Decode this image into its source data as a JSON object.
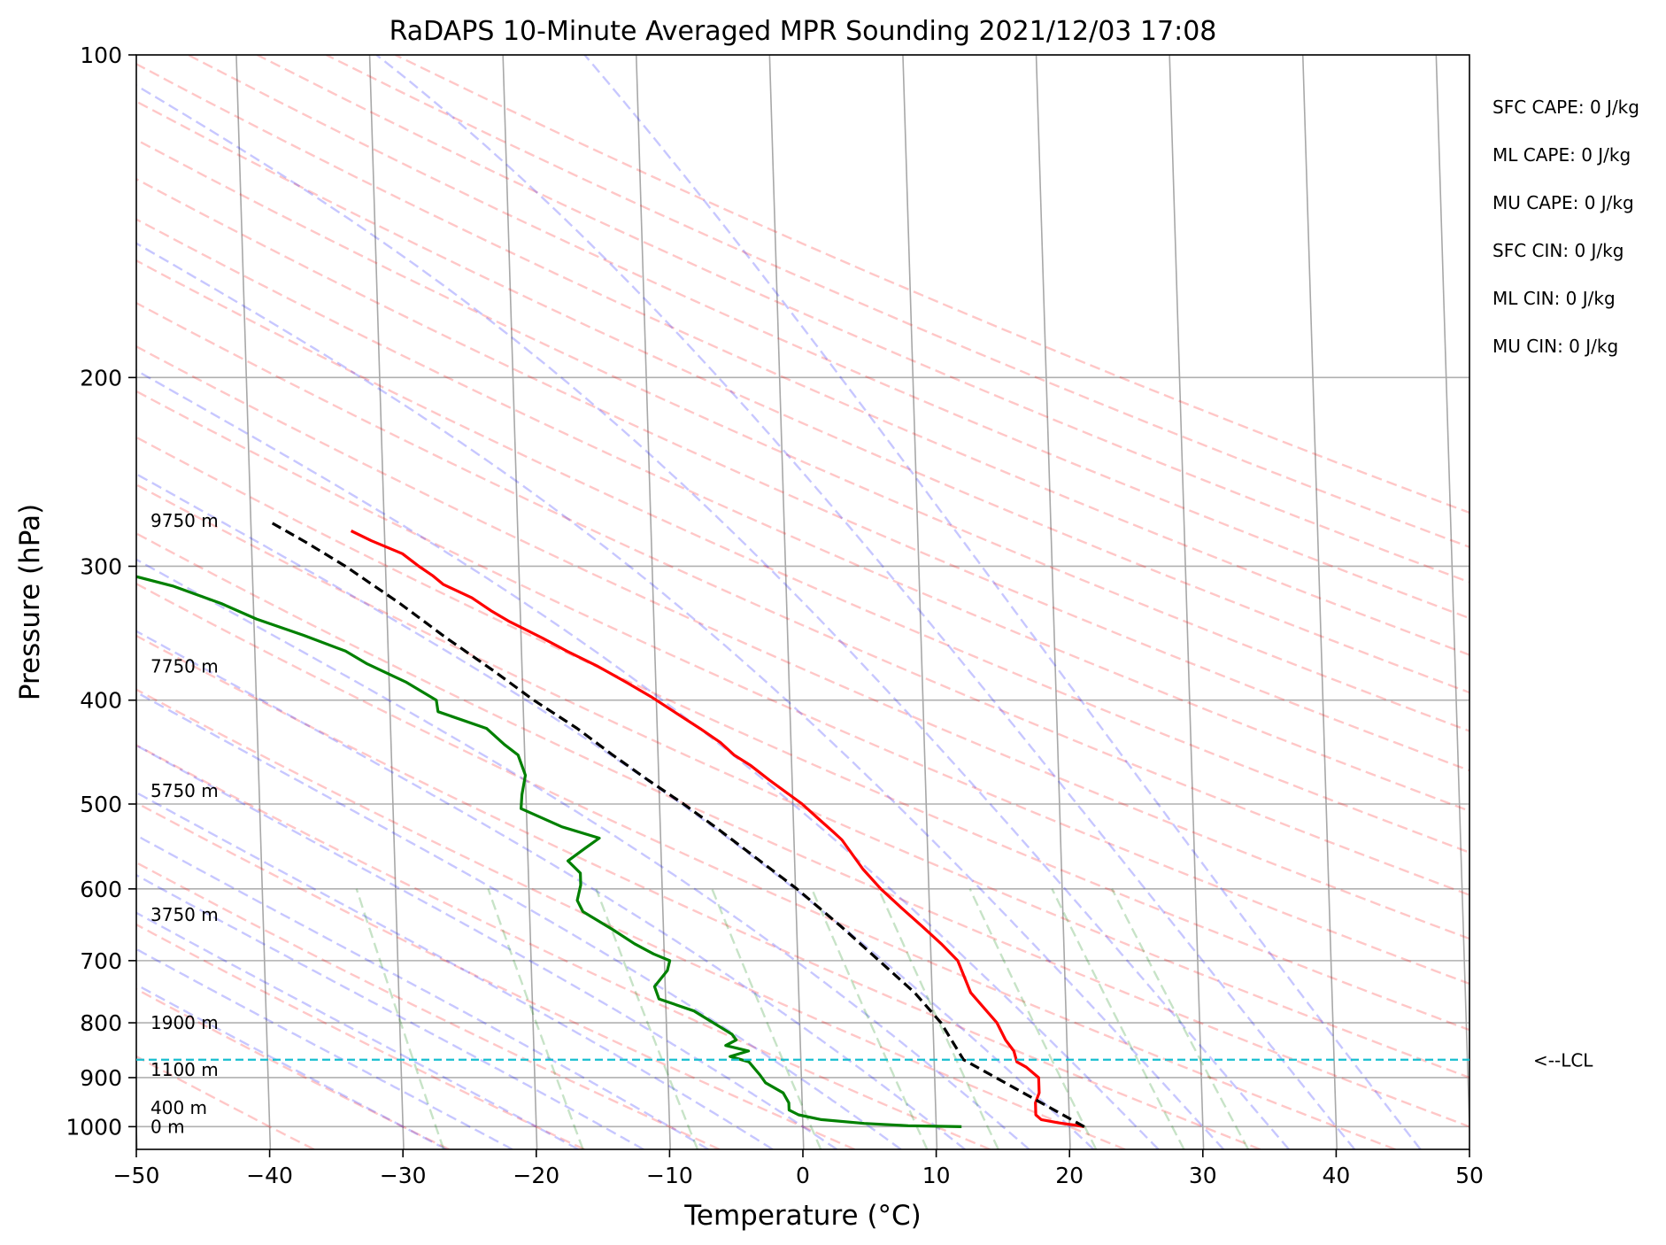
{
  "chart_data": {
    "type": "line",
    "title": "RaDAPS 10-Minute Averaged MPR Sounding 2021/12/03 17:08",
    "xlabel": "Temperature (°C)",
    "ylabel": "Pressure (hPa)",
    "xlim": [
      -50,
      50
    ],
    "ylim": [
      1050,
      100
    ],
    "y_scale": "log",
    "skew_t": true,
    "grid": true,
    "x_ticks": [
      "−50",
      "−40",
      "−30",
      "−20",
      "−10",
      "0",
      "10",
      "20",
      "30",
      "40",
      "50"
    ],
    "x_tick_values": [
      -50,
      -40,
      -30,
      -20,
      -10,
      0,
      10,
      20,
      30,
      40,
      50
    ],
    "y_ticks": [
      "100",
      "200",
      "300",
      "400",
      "500",
      "600",
      "700",
      "800",
      "900",
      "1000"
    ],
    "y_tick_values": [
      100,
      200,
      300,
      400,
      500,
      600,
      700,
      800,
      900,
      1000
    ],
    "height_labels": [
      {
        "label": "9750 m",
        "p": 272
      },
      {
        "label": "7750 m",
        "p": 372
      },
      {
        "label": "5750 m",
        "p": 486
      },
      {
        "label": "3750 m",
        "p": 634
      },
      {
        "label": "1900 m",
        "p": 800
      },
      {
        "label": "1100 m",
        "p": 885
      },
      {
        "label": "400 m",
        "p": 960
      },
      {
        "label": "0 m",
        "p": 1000
      }
    ],
    "stats": [
      "SFC CAPE: 0 J/kg",
      "ML CAPE: 0 J/kg",
      "MU CAPE: 0 J/kg",
      "SFC CIN: 0 J/kg",
      "ML CIN: 0 J/kg",
      "MU CIN: 0 J/kg"
    ],
    "lcl": {
      "label": "<--LCL",
      "p": 866,
      "color": "#17becf"
    },
    "series": [
      {
        "color": "#ff0000",
        "points": [
          [
            21.1,
            1000
          ],
          [
            20.5,
            997
          ],
          [
            19.2,
            992
          ],
          [
            17.9,
            985
          ],
          [
            17.5,
            975
          ],
          [
            17.5,
            950
          ],
          [
            17.8,
            930
          ],
          [
            17.8,
            900
          ],
          [
            16.9,
            880
          ],
          [
            16.2,
            870
          ],
          [
            16.0,
            850
          ],
          [
            15.4,
            830
          ],
          [
            14.8,
            800
          ],
          [
            12.9,
            750
          ],
          [
            12.0,
            700
          ],
          [
            10.8,
            675
          ],
          [
            9.4,
            650
          ],
          [
            7.9,
            625
          ],
          [
            6.4,
            600
          ],
          [
            5.1,
            575
          ],
          [
            3.6,
            540
          ],
          [
            2.9,
            530
          ],
          [
            1.8,
            515
          ],
          [
            0.7,
            500
          ],
          [
            -1.7,
            475
          ],
          [
            -3.1,
            460
          ],
          [
            -4.3,
            450
          ],
          [
            -5.3,
            438
          ],
          [
            -6.8,
            425
          ],
          [
            -8.7,
            410
          ],
          [
            -10.4,
            397
          ],
          [
            -12.2,
            385
          ],
          [
            -14.3,
            372
          ],
          [
            -16.6,
            360
          ],
          [
            -18.4,
            350
          ],
          [
            -20.8,
            338
          ],
          [
            -22.2,
            330
          ],
          [
            -23.6,
            321
          ],
          [
            -25.7,
            312
          ],
          [
            -26.5,
            306
          ],
          [
            -27.5,
            300
          ],
          [
            -28.7,
            292
          ],
          [
            -31.0,
            284
          ],
          [
            -32.5,
            278
          ]
        ]
      },
      {
        "color": "#008000",
        "points": [
          [
            11.9,
            1000
          ],
          [
            7.9,
            998
          ],
          [
            4.6,
            993
          ],
          [
            1.4,
            985
          ],
          [
            -0.3,
            975
          ],
          [
            -1.0,
            965
          ],
          [
            -1.0,
            950
          ],
          [
            -1.4,
            930
          ],
          [
            -2.7,
            910
          ],
          [
            -3.1,
            895
          ],
          [
            -3.9,
            870
          ],
          [
            -5.3,
            860
          ],
          [
            -3.9,
            850
          ],
          [
            -5.6,
            840
          ],
          [
            -4.8,
            830
          ],
          [
            -5.1,
            820
          ],
          [
            -7.9,
            780
          ],
          [
            -10.5,
            760
          ],
          [
            -10.8,
            740
          ],
          [
            -9.8,
            715
          ],
          [
            -9.6,
            700
          ],
          [
            -10.8,
            690
          ],
          [
            -12.2,
            675
          ],
          [
            -13.8,
            655
          ],
          [
            -16.0,
            630
          ],
          [
            -16.4,
            615
          ],
          [
            -16.1,
            595
          ],
          [
            -16.1,
            580
          ],
          [
            -17.0,
            565
          ],
          [
            -15.7,
            550
          ],
          [
            -14.6,
            538
          ],
          [
            -17.4,
            525
          ],
          [
            -20.4,
            505
          ],
          [
            -20.3,
            490
          ],
          [
            -20.0,
            470
          ],
          [
            -20.5,
            450
          ],
          [
            -21.5,
            440
          ],
          [
            -22.8,
            425
          ],
          [
            -26.4,
            410
          ],
          [
            -26.5,
            400
          ],
          [
            -28.7,
            385
          ],
          [
            -31.6,
            370
          ],
          [
            -33.2,
            360
          ],
          [
            -36.3,
            348
          ],
          [
            -39.8,
            336
          ],
          [
            -42.4,
            325
          ],
          [
            -46.0,
            313
          ],
          [
            -51.7,
            300
          ],
          [
            -62.0,
            292
          ]
        ]
      },
      {
        "color": "#000000",
        "dashed": true,
        "points": [
          [
            21.1,
            1000
          ],
          [
            12.2,
            866
          ],
          [
            10.6,
            800
          ],
          [
            8.7,
            750
          ],
          [
            6.1,
            700
          ],
          [
            3.3,
            650
          ],
          [
            0.1,
            600
          ],
          [
            -1.8,
            575
          ],
          [
            -3.8,
            550
          ],
          [
            -5.9,
            525
          ],
          [
            -8.2,
            500
          ],
          [
            -10.8,
            475
          ],
          [
            -13.4,
            450
          ],
          [
            -16.0,
            425
          ],
          [
            -19.2,
            400
          ],
          [
            -22.2,
            375
          ],
          [
            -25.6,
            350
          ],
          [
            -29.0,
            325
          ],
          [
            -33.0,
            300
          ],
          [
            -35.9,
            285
          ],
          [
            -38.5,
            273
          ]
        ]
      }
    ]
  }
}
